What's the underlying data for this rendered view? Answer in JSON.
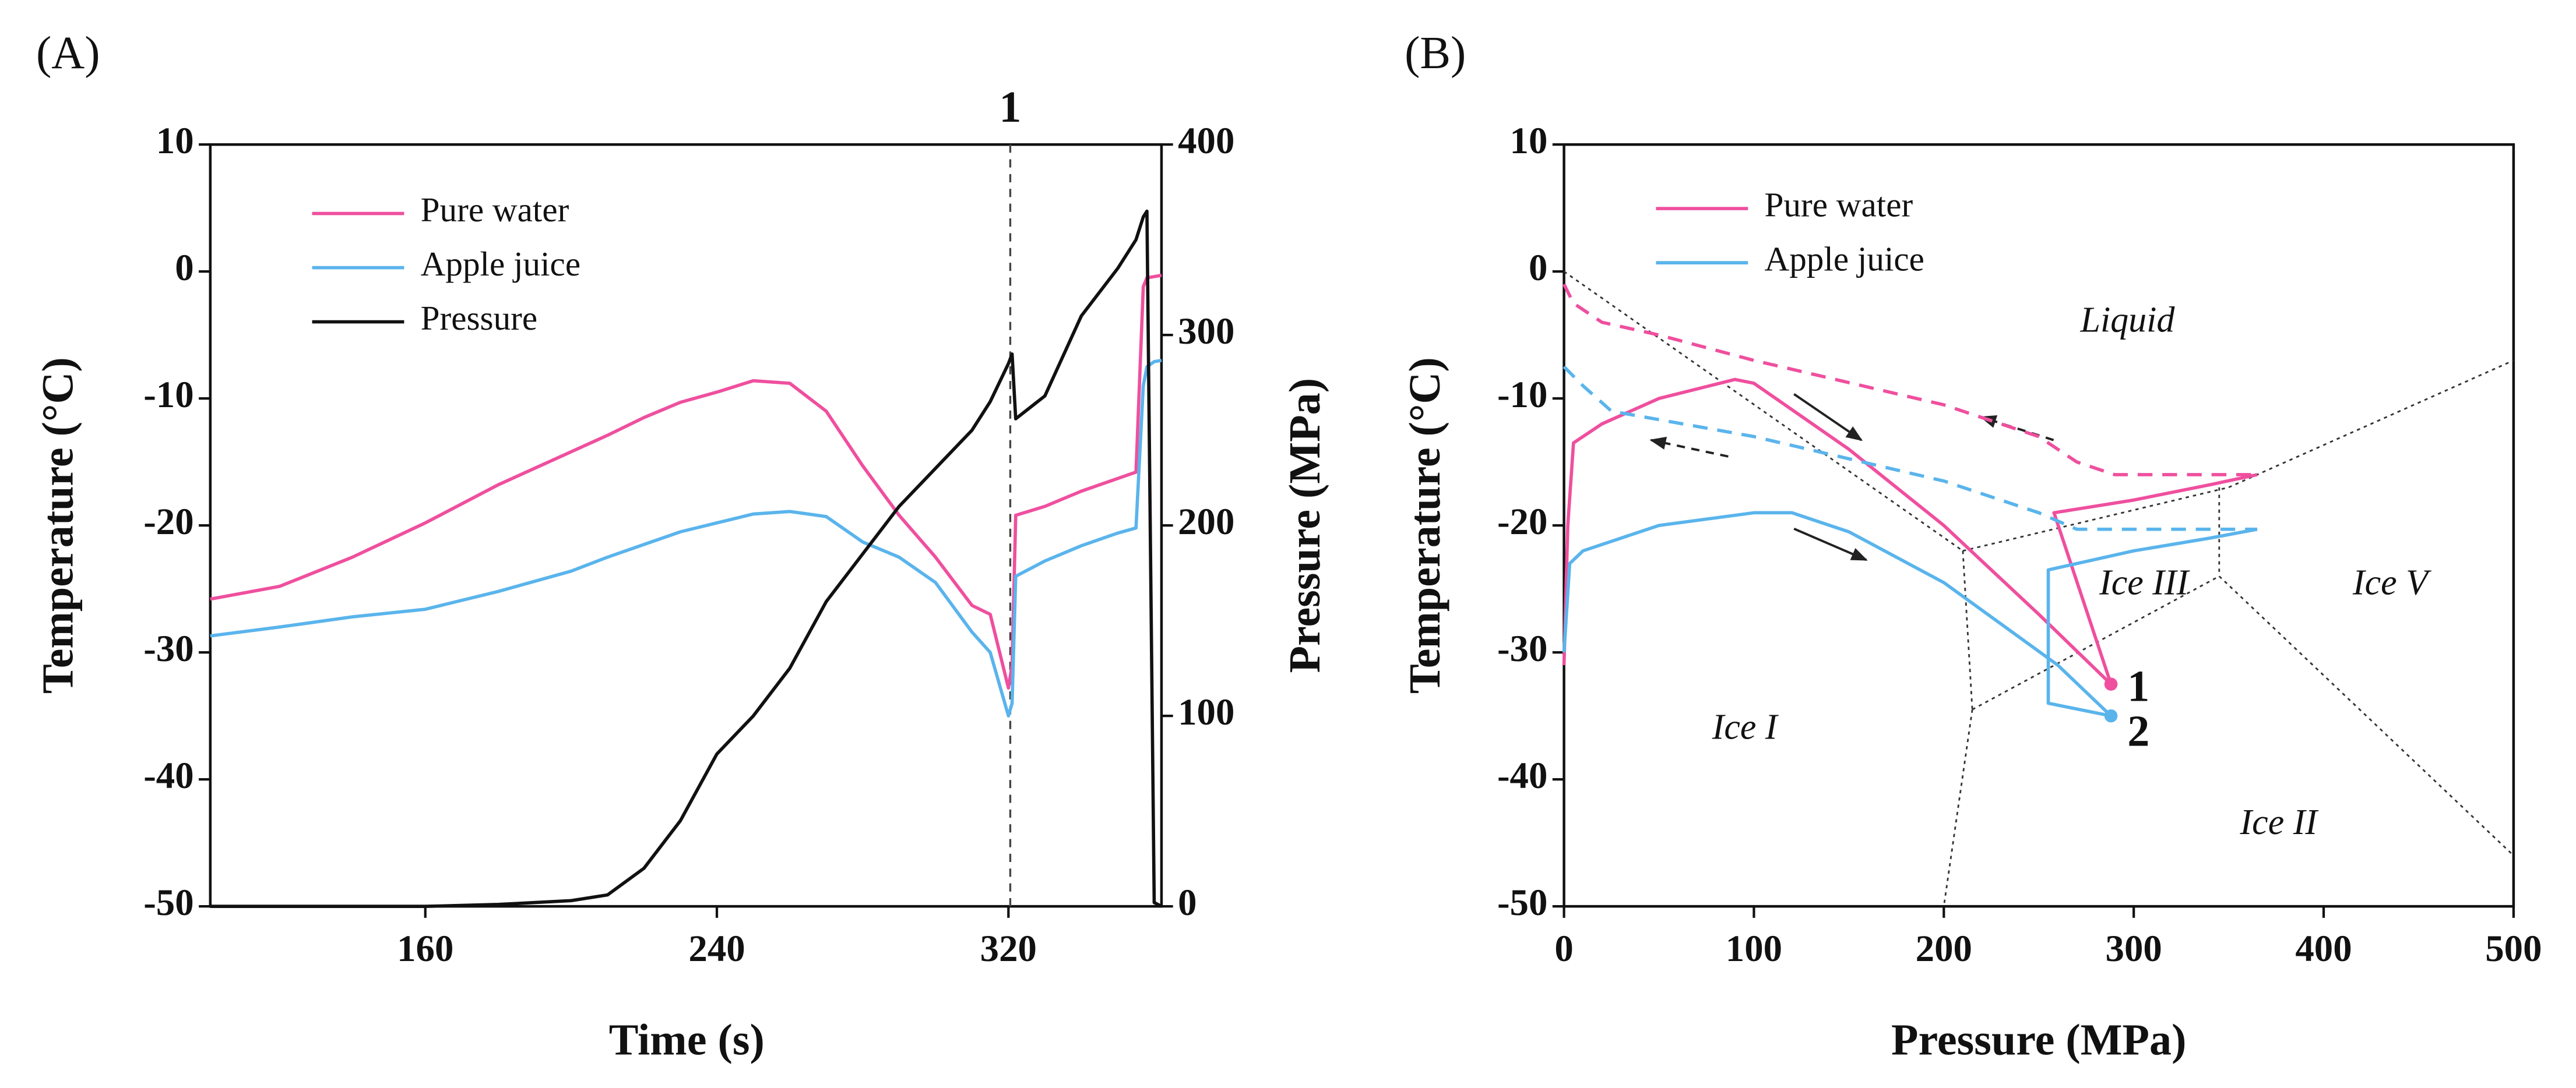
{
  "chart_data": [
    {
      "type": "line",
      "label": "(A)",
      "xlabel": "Time (s)",
      "ylabel": "Temperature (°C)",
      "y2label": "Pressure (MPa)",
      "xlim": [
        101,
        362
      ],
      "xticks": [
        160,
        240,
        320
      ],
      "ylim": [
        -50,
        10
      ],
      "yticks": [
        -50,
        -40,
        -30,
        -20,
        -10,
        0,
        10
      ],
      "y2lim": [
        0,
        400
      ],
      "y2ticks": [
        0,
        100,
        200,
        300,
        400
      ],
      "vline": {
        "x": 320.5,
        "label": "1"
      },
      "x": [
        101,
        120,
        140,
        160,
        180,
        200,
        210,
        220,
        230,
        240,
        250,
        260,
        270,
        280,
        290,
        300,
        310,
        315,
        320,
        321,
        322,
        330,
        340,
        350,
        355,
        357,
        358,
        360,
        362
      ],
      "series": [
        {
          "name": "Pure water",
          "color": "#ef4f9e",
          "values": [
            -25.8,
            -24.8,
            -22.5,
            -19.8,
            -16.8,
            -14.2,
            -12.9,
            -11.5,
            -10.3,
            -9.5,
            -8.6,
            -8.8,
            -11,
            -15.3,
            -19.2,
            -22.5,
            -26.3,
            -27,
            -32.8,
            -31,
            -19.2,
            -18.5,
            -17.3,
            -16.3,
            -15.8,
            -1.2,
            -0.5,
            -0.4,
            -0.3
          ]
        },
        {
          "name": "Apple juice",
          "color": "#5ab4ec",
          "values": [
            -28.7,
            -28,
            -27.2,
            -26.6,
            -25.2,
            -23.6,
            -22.5,
            -21.5,
            -20.5,
            -19.8,
            -19.1,
            -18.9,
            -19.3,
            -21.3,
            -22.5,
            -24.5,
            -28.4,
            -30,
            -35,
            -34,
            -24,
            -22.8,
            -21.6,
            -20.6,
            -20.2,
            -9,
            -7.5,
            -7.1,
            -7
          ]
        },
        {
          "name": "Pressure",
          "color": "#111111",
          "axis": "y2",
          "values": [
            0,
            0,
            0,
            0,
            1,
            3,
            6,
            20,
            45,
            80,
            100,
            125,
            160,
            185,
            210,
            230,
            250,
            265,
            285,
            290,
            256,
            268,
            310,
            335,
            350,
            362,
            365,
            2,
            0
          ]
        }
      ]
    },
    {
      "type": "line",
      "label": "(B)",
      "xlabel": "Pressure (MPa)",
      "ylabel": "Temperature (°C)",
      "xlim": [
        0,
        500
      ],
      "xticks": [
        0,
        100,
        200,
        300,
        400,
        500
      ],
      "ylim": [
        -50,
        10
      ],
      "yticks": [
        -50,
        -40,
        -30,
        -20,
        -10,
        0,
        10
      ],
      "series": [
        {
          "name": "Pure water",
          "color": "#ef4f9e",
          "x": [
            0,
            2,
            5,
            20,
            50,
            90,
            100,
            150,
            200,
            250,
            288,
            258,
            300,
            340,
            365
          ],
          "values": [
            -31,
            -20,
            -13.5,
            -12,
            -10,
            -8.5,
            -8.8,
            -14,
            -20,
            -27,
            -32.5,
            -19,
            -18,
            -16.8,
            -16
          ]
        },
        {
          "name": "Apple juice",
          "color": "#5ab4ec",
          "x": [
            0,
            3,
            10,
            50,
            100,
            120,
            150,
            200,
            260,
            288,
            255,
            255,
            300,
            340,
            365
          ],
          "values": [
            -30,
            -23,
            -22,
            -20,
            -19,
            -19,
            -20.5,
            -24.5,
            -31,
            -35,
            -34,
            -23.5,
            -22,
            -21,
            -20.3
          ]
        },
        {
          "color": "#ef4f9e",
          "dashed": true,
          "x": [
            0,
            5,
            20,
            50,
            100,
            200,
            250,
            270,
            290,
            365
          ],
          "values": [
            -1,
            -2.5,
            -4,
            -5,
            -7,
            -10.5,
            -13,
            -15,
            -16,
            -16
          ]
        },
        {
          "color": "#5ab4ec",
          "dashed": true,
          "x": [
            0,
            10,
            25,
            100,
            200,
            250,
            270,
            365
          ],
          "values": [
            -7.5,
            -9,
            -11,
            -13,
            -16.5,
            -19,
            -20.3,
            -20.3
          ]
        }
      ],
      "phase_boundaries": [
        {
          "x": [
            0,
            210
          ],
          "values": [
            0,
            -22
          ]
        },
        {
          "x": [
            210,
            215
          ],
          "values": [
            -22,
            -34.5
          ]
        },
        {
          "x": [
            215,
            200
          ],
          "values": [
            -34.5,
            -50
          ]
        },
        {
          "x": [
            210,
            350
          ],
          "values": [
            -22,
            -17
          ]
        },
        {
          "x": [
            345,
            345
          ],
          "values": [
            -17,
            -24
          ]
        },
        {
          "x": [
            215,
            345
          ],
          "values": [
            -34.5,
            -24
          ]
        },
        {
          "x": [
            350,
            500
          ],
          "values": [
            -17,
            -7
          ]
        },
        {
          "x": [
            345,
            500
          ],
          "values": [
            -24,
            -46
          ]
        }
      ],
      "points": [
        {
          "label": "1",
          "x": 288,
          "y": -32.5,
          "color": "#ef4f9e"
        },
        {
          "label": "2",
          "x": 288,
          "y": -35,
          "color": "#5ab4ec"
        }
      ],
      "regions": [
        "Liquid",
        "Ice III",
        "Ice V",
        "Ice I",
        "Ice II"
      ]
    }
  ]
}
